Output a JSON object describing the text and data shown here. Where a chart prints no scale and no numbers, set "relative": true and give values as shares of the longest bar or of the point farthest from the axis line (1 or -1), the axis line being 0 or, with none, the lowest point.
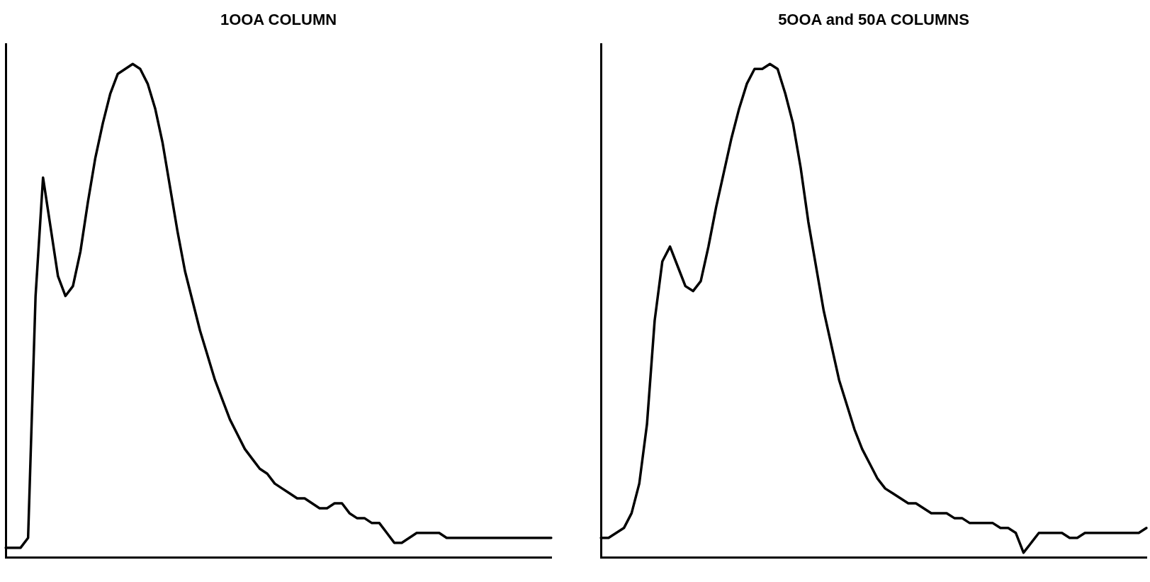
{
  "chart_data": [
    {
      "type": "line",
      "title": "1OOA COLUMN",
      "relative": true,
      "color": "#000000",
      "marker": "none",
      "line_style": "solid",
      "grid": false,
      "legend": false,
      "categories": [
        null,
        null,
        null,
        null,
        null,
        null,
        null,
        null,
        null,
        null,
        null,
        null,
        null,
        null,
        null,
        null,
        null,
        null,
        null,
        null,
        null,
        null,
        null,
        null,
        null,
        null,
        null,
        null,
        null,
        null,
        null,
        null,
        null,
        null,
        null,
        null,
        null,
        null,
        null,
        null,
        null,
        null,
        null,
        null,
        null,
        null,
        null,
        null,
        null,
        null,
        null,
        null,
        null,
        null,
        null,
        null,
        null,
        null,
        null,
        null,
        null,
        null,
        null,
        null,
        null,
        null,
        null,
        null,
        null,
        null,
        null,
        null,
        null,
        null
      ],
      "values": [
        0.02,
        0.02,
        0.02,
        0.04,
        0.53,
        0.77,
        0.67,
        0.57,
        0.53,
        0.55,
        0.62,
        0.72,
        0.81,
        0.88,
        0.94,
        0.98,
        0.99,
        1,
        0.99,
        0.96,
        0.91,
        0.84,
        0.75,
        0.66,
        0.58,
        0.52,
        0.46,
        0.41,
        0.36,
        0.32,
        0.28,
        0.25,
        0.22,
        0.2,
        0.18,
        0.17,
        0.15,
        0.14,
        0.13,
        0.12,
        0.12,
        0.11,
        0.1,
        0.1,
        0.11,
        0.11,
        0.09,
        0.08,
        0.08,
        0.07,
        0.07,
        0.05,
        0.03,
        0.03,
        0.04,
        0.05,
        0.05,
        0.05,
        0.05,
        0.04,
        0.04,
        0.04,
        0.04,
        0.04,
        0.04,
        0.04,
        0.04,
        0.04,
        0.04,
        0.04,
        0.04,
        0.04,
        0.04,
        0.04
      ]
    },
    {
      "type": "line",
      "title": "5OOA and 50A COLUMNS",
      "relative": true,
      "color": "#000000",
      "marker": "none",
      "line_style": "solid",
      "grid": false,
      "legend": false,
      "categories": [
        null,
        null,
        null,
        null,
        null,
        null,
        null,
        null,
        null,
        null,
        null,
        null,
        null,
        null,
        null,
        null,
        null,
        null,
        null,
        null,
        null,
        null,
        null,
        null,
        null,
        null,
        null,
        null,
        null,
        null,
        null,
        null,
        null,
        null,
        null,
        null,
        null,
        null,
        null,
        null,
        null,
        null,
        null,
        null,
        null,
        null,
        null,
        null,
        null,
        null,
        null,
        null,
        null,
        null,
        null,
        null,
        null,
        null,
        null,
        null,
        null,
        null,
        null,
        null,
        null,
        null,
        null,
        null,
        null,
        null,
        null,
        null
      ],
      "values": [
        0.04,
        0.04,
        0.05,
        0.06,
        0.09,
        0.15,
        0.27,
        0.48,
        0.6,
        0.63,
        0.59,
        0.55,
        0.54,
        0.56,
        0.63,
        0.71,
        0.78,
        0.85,
        0.91,
        0.96,
        0.99,
        0.99,
        1,
        0.99,
        0.94,
        0.88,
        0.79,
        0.68,
        0.59,
        0.5,
        0.43,
        0.36,
        0.31,
        0.26,
        0.22,
        0.19,
        0.16,
        0.14,
        0.13,
        0.12,
        0.11,
        0.11,
        0.1,
        0.09,
        0.09,
        0.09,
        0.08,
        0.08,
        0.07,
        0.07,
        0.07,
        0.07,
        0.06,
        0.06,
        0.05,
        0.01,
        0.03,
        0.05,
        0.05,
        0.05,
        0.05,
        0.04,
        0.04,
        0.05,
        0.05,
        0.05,
        0.05,
        0.05,
        0.05,
        0.05,
        0.05,
        0.06
      ]
    }
  ]
}
